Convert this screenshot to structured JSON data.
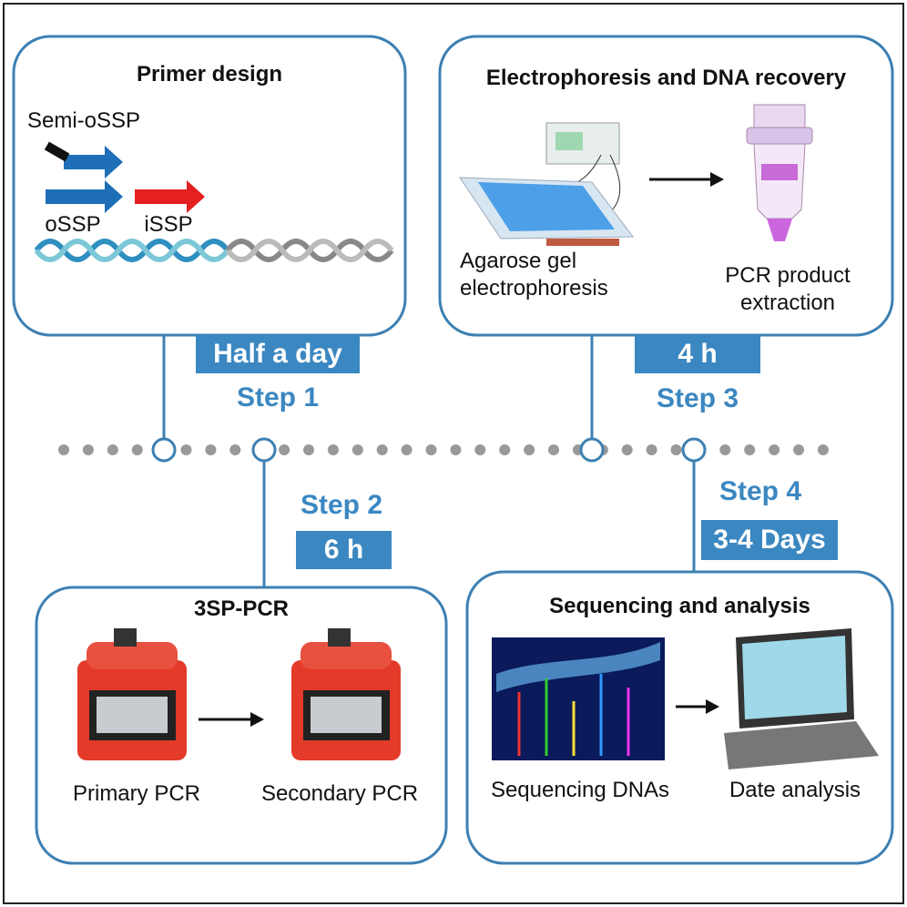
{
  "steps": [
    {
      "title": "Primer design",
      "duration": "Half a day",
      "step": "Step 1",
      "labels": [
        "Semi-oSSP",
        "oSSP",
        "iSSP"
      ]
    },
    {
      "title": "3SP-PCR",
      "duration": "6 h",
      "step": "Step 2",
      "labels": [
        "Primary PCR",
        "Secondary PCR"
      ]
    },
    {
      "title": "Electrophoresis and DNA recovery",
      "duration": "4 h",
      "step": "Step 3",
      "labels": [
        "Agarose gel electrophoresis",
        "PCR product extraction"
      ]
    },
    {
      "title": "Sequencing and analysis",
      "duration": "3-4 Days",
      "step": "Step 4",
      "labels": [
        "Sequencing DNAs",
        "Date analysis"
      ]
    }
  ]
}
